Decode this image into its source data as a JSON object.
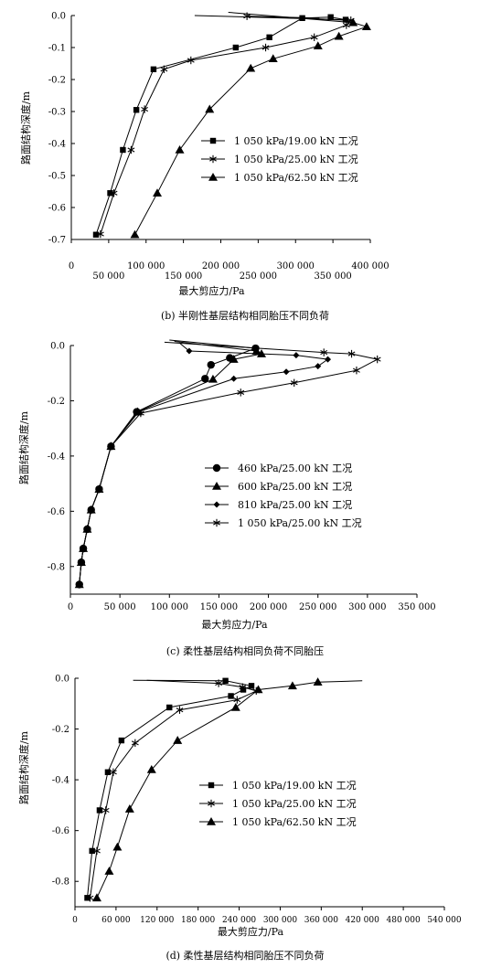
{
  "chart_data": [
    {
      "type": "line",
      "caption": "(b) 半刚性基层结构相同胎压不同负荷",
      "xlabel": "最大剪应力/Pa",
      "ylabel": "路面结构深度/m",
      "xlim": [
        0,
        400000
      ],
      "ylim": [
        -0.7,
        0
      ],
      "x_ticks_upper": [
        0,
        100000,
        200000,
        300000,
        400000
      ],
      "x_ticks_upper_labels": [
        "0",
        "100 000",
        "200 000",
        "300 000",
        "400 000"
      ],
      "x_ticks_lower": [
        50000,
        150000,
        250000,
        350000
      ],
      "x_ticks_lower_labels": [
        "50 000",
        "150 000",
        "250 000",
        "350 000"
      ],
      "y_ticks": [
        0,
        -0.1,
        -0.2,
        -0.3,
        -0.4,
        -0.5,
        -0.6,
        -0.7
      ],
      "y_tick_labels": [
        "0.0",
        "-0.1",
        "-0.2",
        "-0.3",
        "-0.4",
        "-0.5",
        "-0.6",
        "-0.7"
      ],
      "series": [
        {
          "name": "1 050 kPa/19.00 kN  工况",
          "marker": "square",
          "x": [
            33000,
            52000,
            69000,
            87000,
            110000,
            220000,
            265000,
            309000,
            347000,
            367000,
            165000
          ],
          "y": [
            -0.685,
            -0.555,
            -0.42,
            -0.295,
            -0.168,
            -0.1,
            -0.068,
            -0.008,
            -0.005,
            -0.013,
            0
          ]
        },
        {
          "name": "1 050 kPa/25.00 kN  工况",
          "marker": "asterisk",
          "x": [
            39000,
            57000,
            80000,
            98000,
            124000,
            160000,
            260000,
            325000,
            368000,
            374000,
            235000,
            332000
          ],
          "y": [
            -0.683,
            -0.555,
            -0.42,
            -0.293,
            -0.168,
            -0.14,
            -0.1,
            -0.068,
            -0.03,
            -0.015,
            -0.002,
            -0.008
          ]
        },
        {
          "name": "1 050 kPa/62.50 kN  工况",
          "marker": "triangle",
          "x": [
            85000,
            115000,
            145000,
            185000,
            240000,
            270000,
            330000,
            358000,
            395000,
            377000,
            210000
          ],
          "y": [
            -0.685,
            -0.555,
            -0.42,
            -0.293,
            -0.165,
            -0.135,
            -0.095,
            -0.065,
            -0.035,
            -0.022,
            0.01
          ]
        }
      ]
    },
    {
      "type": "line",
      "caption": "(c) 柔性基层结构相同负荷不同胎压",
      "xlabel": "最大剪应力/Pa",
      "ylabel": "路面结构深度/m",
      "xlim": [
        0,
        350000
      ],
      "ylim": [
        -0.9,
        0
      ],
      "x_ticks": [
        0,
        50000,
        100000,
        150000,
        200000,
        250000,
        300000,
        350000
      ],
      "x_tick_labels": [
        "0",
        "50 000",
        "100 000",
        "150 000",
        "200 000",
        "250 000",
        "300 000",
        "350 000"
      ],
      "y_ticks": [
        0,
        -0.2,
        -0.4,
        -0.6,
        -0.8
      ],
      "y_tick_labels": [
        "0.0",
        "-0.2",
        "-0.4",
        "-0.6",
        "-0.8"
      ],
      "series": [
        {
          "name": "460 kPa/25.00 kN   工况",
          "marker": "circle",
          "x": [
            9000,
            11000,
            13000,
            17000,
            21000,
            29000,
            41000,
            67000,
            136000,
            142000,
            161000,
            187000,
            100000
          ],
          "y": [
            -0.865,
            -0.785,
            -0.735,
            -0.665,
            -0.595,
            -0.52,
            -0.365,
            -0.24,
            -0.12,
            -0.07,
            -0.045,
            -0.01,
            0.02
          ]
        },
        {
          "name": "600 kPa/25.00 kN   工况",
          "marker": "triangle",
          "x": [
            9000,
            11000,
            13000,
            17000,
            21000,
            29000,
            41000,
            68000,
            144000,
            165000,
            193000,
            188000,
            105000
          ],
          "y": [
            -0.865,
            -0.785,
            -0.735,
            -0.665,
            -0.595,
            -0.52,
            -0.365,
            -0.24,
            -0.122,
            -0.05,
            -0.03,
            -0.02,
            0.015
          ]
        },
        {
          "name": "810 kPa/25.00 kN   工况",
          "marker": "diamond",
          "x": [
            9000,
            11000,
            13000,
            17000,
            21000,
            29000,
            41000,
            69000,
            165000,
            218000,
            250000,
            260000,
            228000,
            120000,
            110000
          ],
          "y": [
            -0.865,
            -0.785,
            -0.735,
            -0.665,
            -0.595,
            -0.52,
            -0.365,
            -0.24,
            -0.12,
            -0.095,
            -0.075,
            -0.05,
            -0.035,
            -0.02,
            0.01
          ]
        },
        {
          "name": "1 050 kPa/25.00 kN   工况",
          "marker": "asterisk",
          "x": [
            9000,
            11000,
            13000,
            17000,
            21000,
            29000,
            41000,
            71000,
            172000,
            226000,
            289000,
            310000,
            284000,
            256000,
            95000
          ],
          "y": [
            -0.865,
            -0.785,
            -0.735,
            -0.665,
            -0.595,
            -0.52,
            -0.365,
            -0.245,
            -0.17,
            -0.135,
            -0.09,
            -0.05,
            -0.03,
            -0.025,
            0.012
          ]
        }
      ]
    },
    {
      "type": "line",
      "caption": "(d) 柔性基层结构相同胎压不同负荷",
      "xlabel": "最大剪应力/Pa",
      "ylabel": "路面结构深度/m",
      "xlim": [
        0,
        540000
      ],
      "ylim": [
        -0.9,
        0
      ],
      "x_ticks": [
        0,
        60000,
        120000,
        180000,
        240000,
        300000,
        360000,
        420000,
        480000,
        540000
      ],
      "x_tick_labels": [
        "0",
        "60 000",
        "120 000",
        "180 000",
        "240 000",
        "300 000",
        "360 000",
        "420 000",
        "480 000",
        "540 000"
      ],
      "y_ticks": [
        0,
        -0.2,
        -0.4,
        -0.6,
        -0.8
      ],
      "y_tick_labels": [
        "0.0",
        "-0.2",
        "-0.4",
        "-0.6",
        "-0.8"
      ],
      "series": [
        {
          "name": "1 050 kPa/19.00 kN   工况",
          "marker": "square",
          "x": [
            18000,
            25000,
            36000,
            48000,
            68000,
            138000,
            228000,
            246000,
            258000,
            220000,
            85000
          ],
          "y": [
            -0.865,
            -0.68,
            -0.52,
            -0.37,
            -0.245,
            -0.115,
            -0.07,
            -0.045,
            -0.03,
            -0.01,
            -0.008
          ]
        },
        {
          "name": "1 050 kPa/25.00 kN   工况",
          "marker": "asterisk",
          "x": [
            22000,
            32000,
            45000,
            56000,
            88000,
            153000,
            237000,
            265000,
            245000,
            210000,
            105000
          ],
          "y": [
            -0.865,
            -0.68,
            -0.52,
            -0.37,
            -0.255,
            -0.125,
            -0.085,
            -0.05,
            -0.035,
            -0.02,
            -0.008
          ]
        },
        {
          "name": "1 050 kPa/62.50 kN   工况",
          "marker": "triangle",
          "x": [
            32000,
            50000,
            62000,
            80000,
            112000,
            150000,
            235000,
            268000,
            318000,
            355000,
            420000
          ],
          "y": [
            -0.865,
            -0.76,
            -0.665,
            -0.515,
            -0.36,
            -0.245,
            -0.115,
            -0.045,
            -0.03,
            -0.015,
            -0.01
          ]
        }
      ]
    }
  ]
}
